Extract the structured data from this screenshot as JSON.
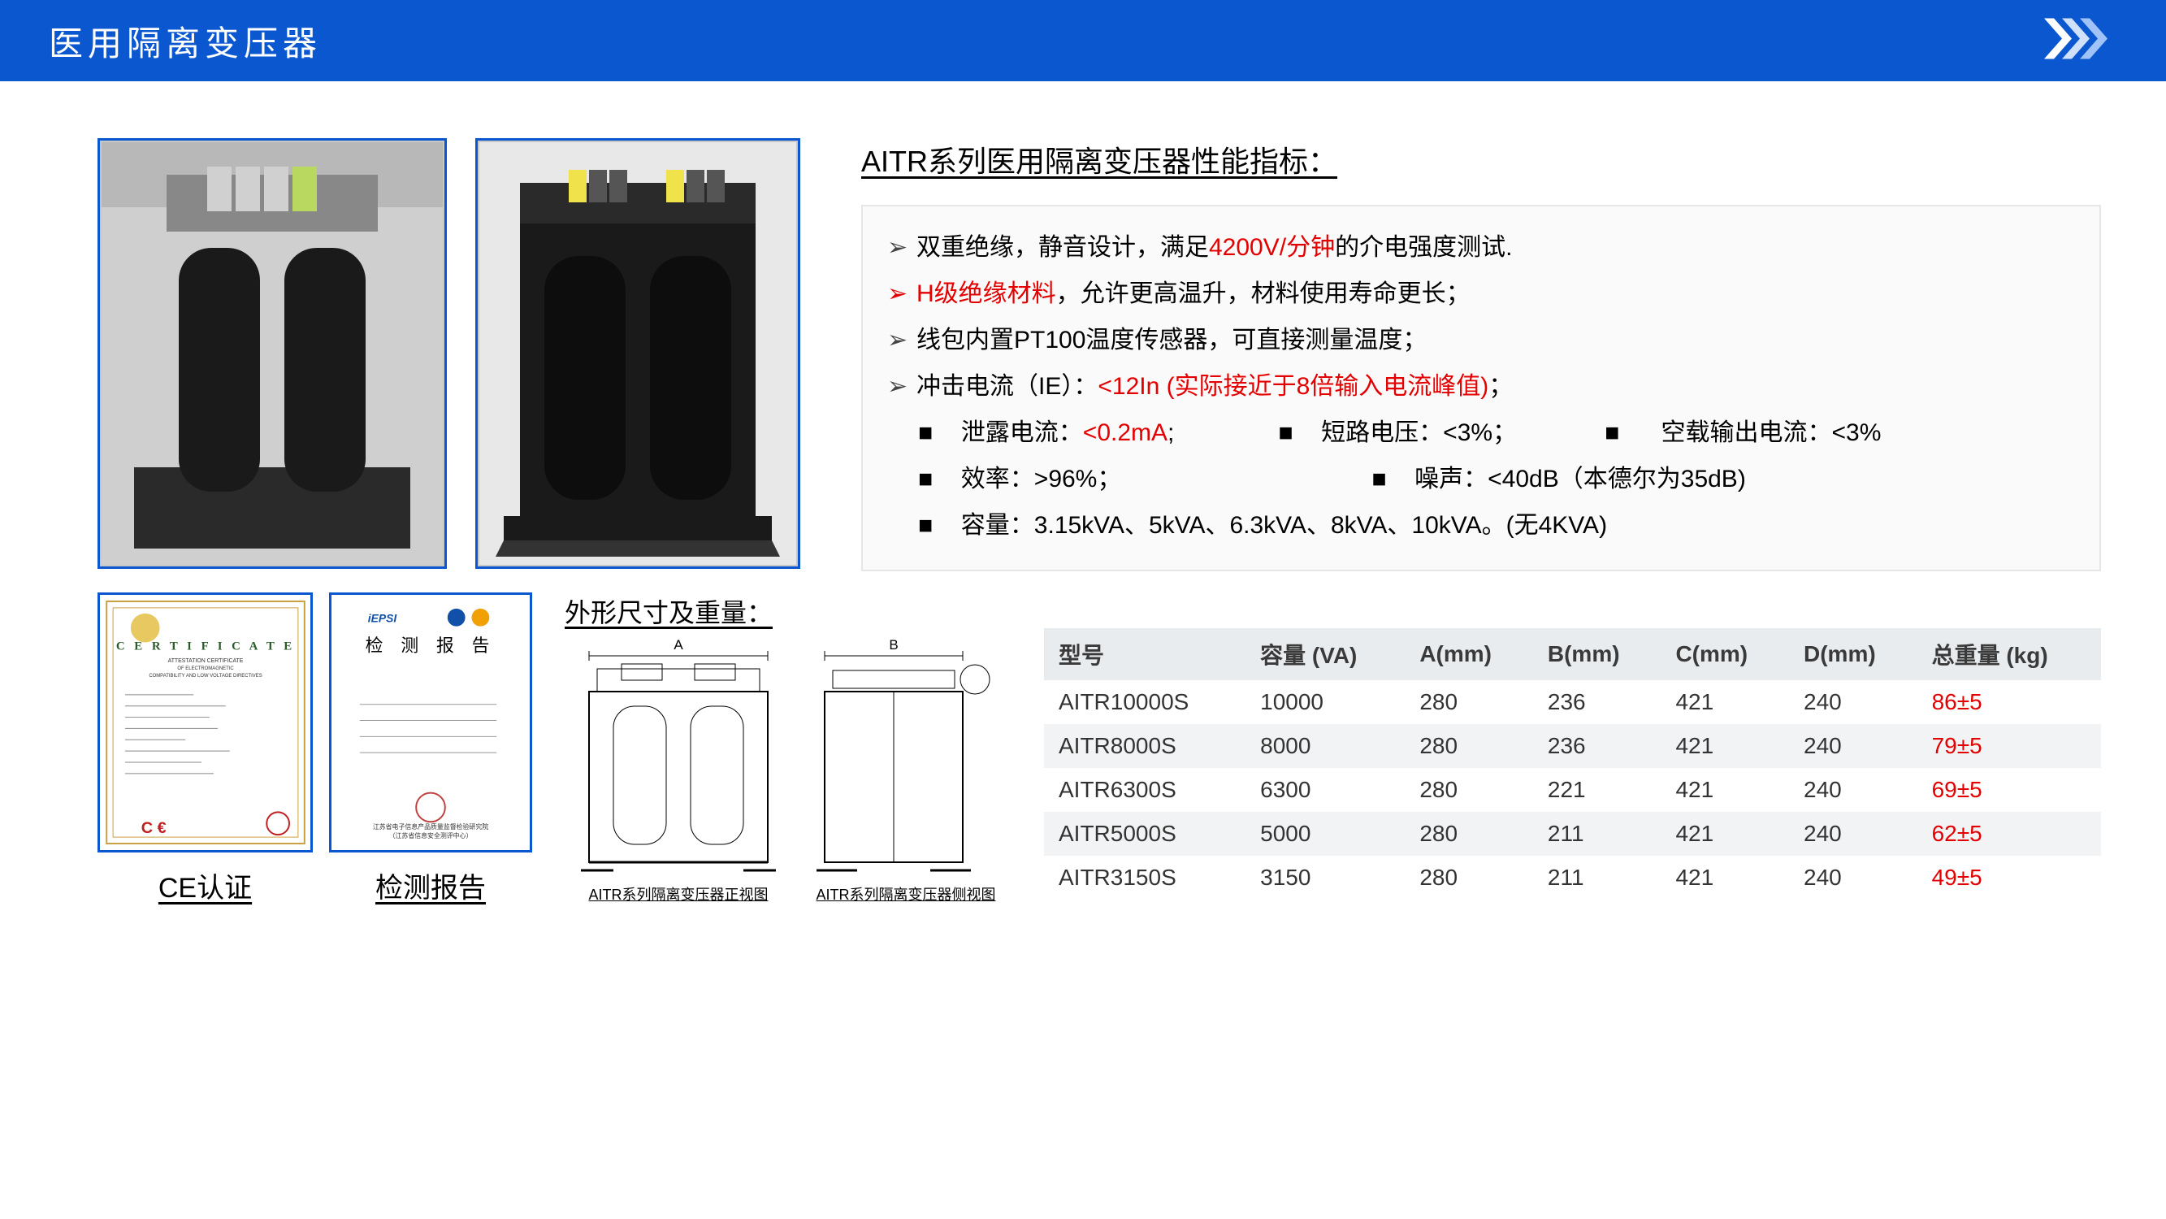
{
  "header": {
    "title": "医用隔离变压器"
  },
  "spec_section": {
    "title": "AITR系列医用隔离变压器性能指标：",
    "bullets": [
      {
        "pre": "双重绝缘，静音设计，满足",
        "red": "4200V/分钟",
        "post": "的介电强度测试."
      },
      {
        "full_red": "H级绝缘材料",
        "post": "，允许更高温升，材料使用寿命更长；"
      },
      {
        "pre": "线包内置PT100温度传感器，可直接测量温度；"
      },
      {
        "pre": "冲击电流（IE）：",
        "red": "<12In (实际接近于8倍输入电流峰值)",
        "post": "；"
      }
    ],
    "square_row1": [
      {
        "label": "泄露电流：",
        "red": "<0.2mA",
        "tail": ";"
      },
      {
        "label": "短路电压：",
        "val": "<3%；"
      },
      {
        "label": "空载输出电流：",
        "val": " <3%"
      }
    ],
    "square_row2": [
      {
        "label": "效率：",
        "val": ">96%；"
      },
      {
        "label": "噪声：",
        "val": "<40dB（本德尔为35dB)"
      }
    ],
    "square_row3": {
      "label": "容量：",
      "val": "3.15kVA、5kVA、6.3kVA、8kVA、10kVA。(无4KVA)"
    }
  },
  "certs": {
    "ce_label": "CE认证",
    "report_label": "检测报告",
    "report_title": "检 测 报 告"
  },
  "dimensions": {
    "title": "外形尺寸及重量：",
    "front_caption": "AITR系列隔离变压器正视图",
    "side_caption": "AITR系列隔离变压器侧视图",
    "label_a": "A",
    "label_b": "B"
  },
  "table": {
    "headers": [
      "型号",
      "容量 (VA)",
      "A(mm)",
      "B(mm)",
      "C(mm)",
      "D(mm)",
      "总重量 (kg)"
    ],
    "rows": [
      [
        "AITR10000S",
        "10000",
        "280",
        "236",
        "421",
        "240",
        "86±5"
      ],
      [
        "AITR8000S",
        "8000",
        "280",
        "236",
        "421",
        "240",
        "79±5"
      ],
      [
        "AITR6300S",
        "6300",
        "280",
        "221",
        "421",
        "240",
        "69±5"
      ],
      [
        "AITR5000S",
        "5000",
        "280",
        "211",
        "421",
        "240",
        "62±5"
      ],
      [
        "AITR3150S",
        "3150",
        "280",
        "211",
        "421",
        "240",
        "49±5"
      ]
    ]
  },
  "colors": {
    "header_bg": "#0b57d0",
    "border_blue": "#0b57d0",
    "red": "#e40000",
    "table_header_bg": "#e9ecee",
    "table_alt_bg": "#f1f3f4"
  }
}
